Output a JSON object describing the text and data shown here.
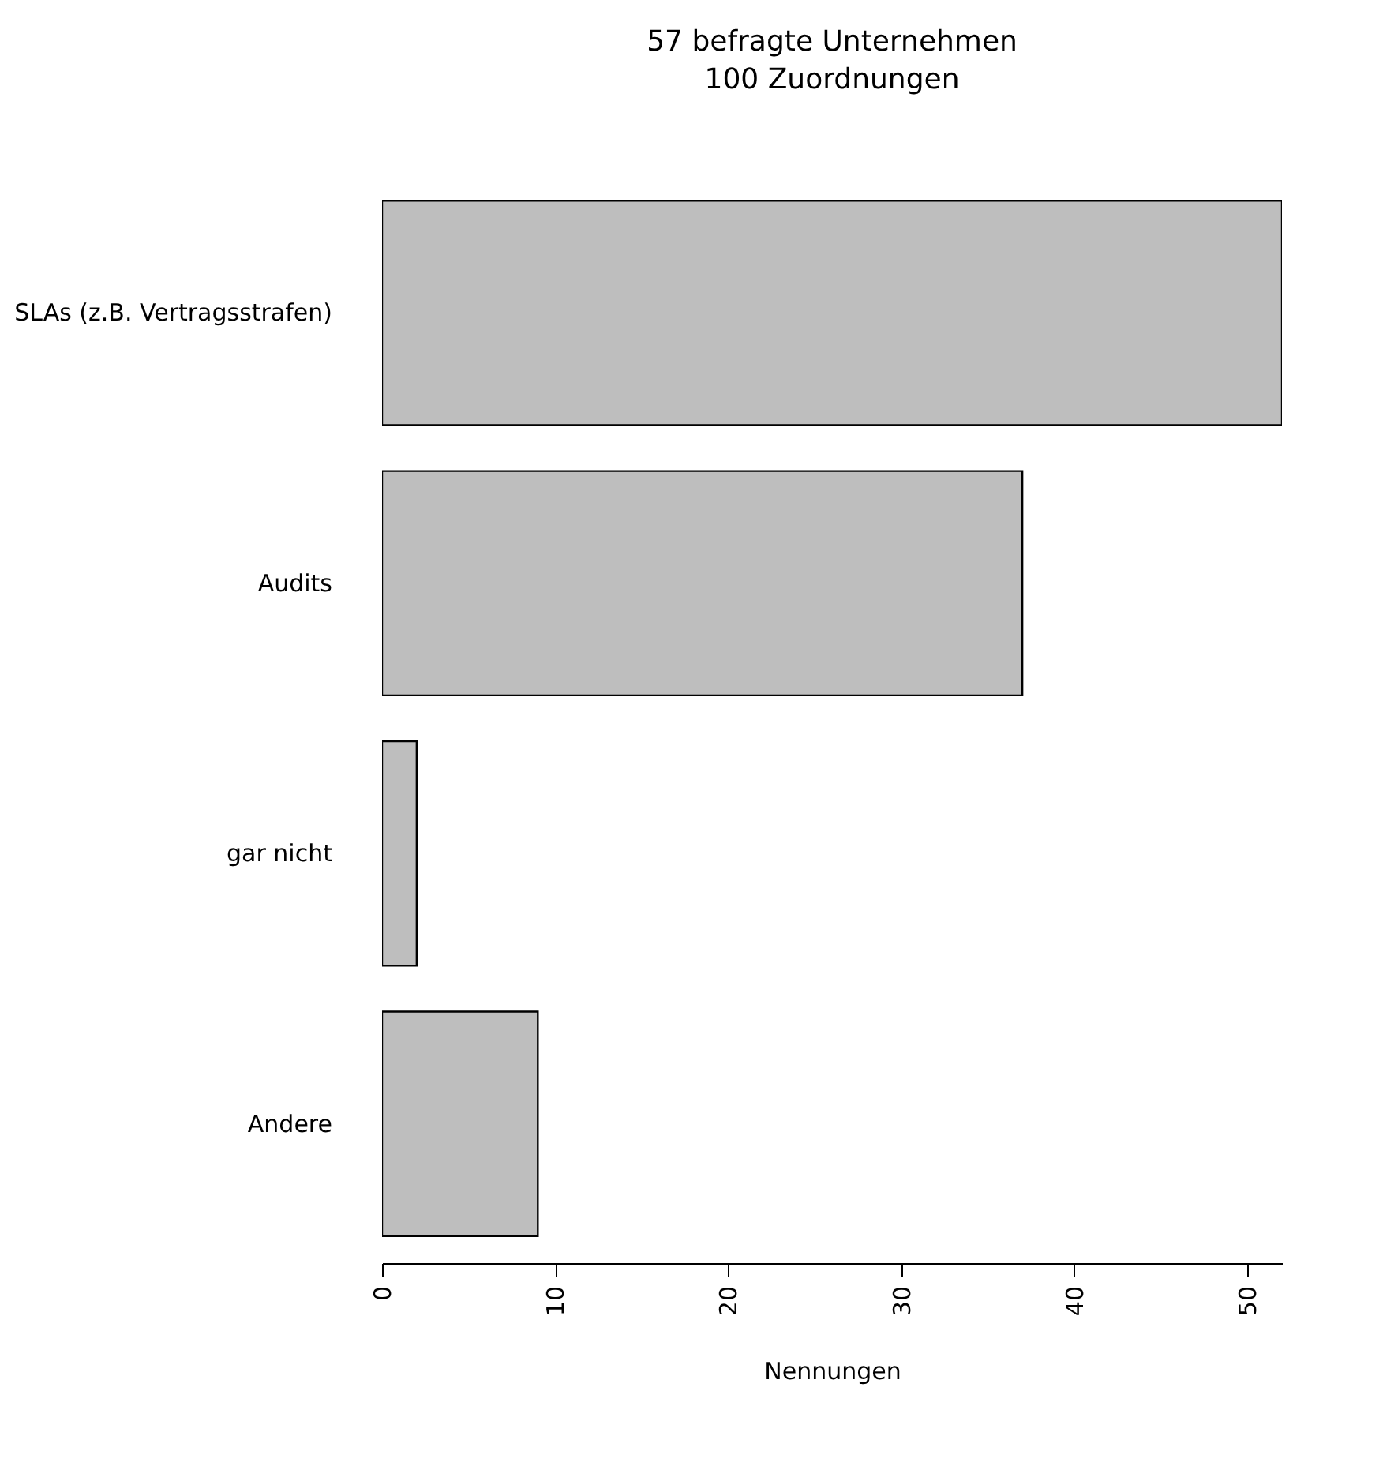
{
  "chart_data": {
    "type": "bar",
    "orientation": "horizontal",
    "title": "57 befragte Unternehmen",
    "subtitle": "100 Zuordnungen",
    "xlabel": "Nennungen",
    "categories": [
      "SLAs (z.B. Vertragsstrafen)",
      "Audits",
      "gar nicht",
      "Andere"
    ],
    "values": [
      52,
      37,
      2,
      9
    ],
    "color": "#bebebe",
    "xlim": [
      0,
      52
    ],
    "xticks": [
      0,
      10,
      20,
      30,
      40,
      50
    ],
    "grid": false
  }
}
